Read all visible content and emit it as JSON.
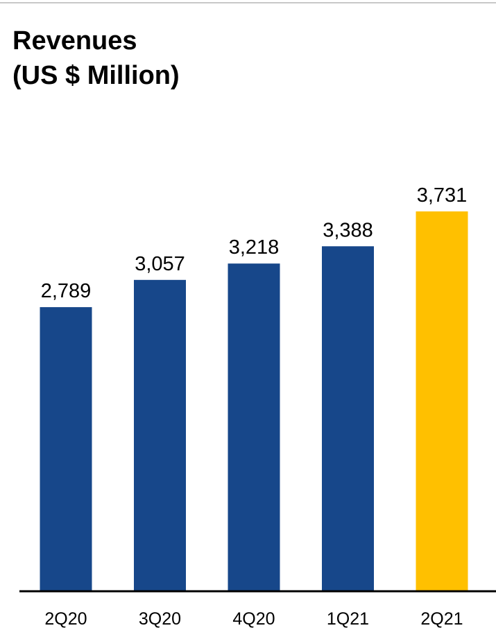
{
  "title_lines": [
    "Revenues",
    "(US $ Million)"
  ],
  "chart_data": {
    "type": "bar",
    "title": "Revenues (US $ Million)",
    "categories": [
      "2Q20",
      "3Q20",
      "4Q20",
      "1Q21",
      "2Q21"
    ],
    "values": [
      2789,
      3057,
      3218,
      3388,
      3731
    ],
    "value_labels": [
      "2,789",
      "3,057",
      "3,218",
      "3,388",
      "3,731"
    ],
    "ylim": [
      0,
      3731
    ],
    "grid": false,
    "legend": "none",
    "colors": {
      "default": "#17478a",
      "highlight": "#ffc000"
    },
    "highlight_index": 4
  }
}
